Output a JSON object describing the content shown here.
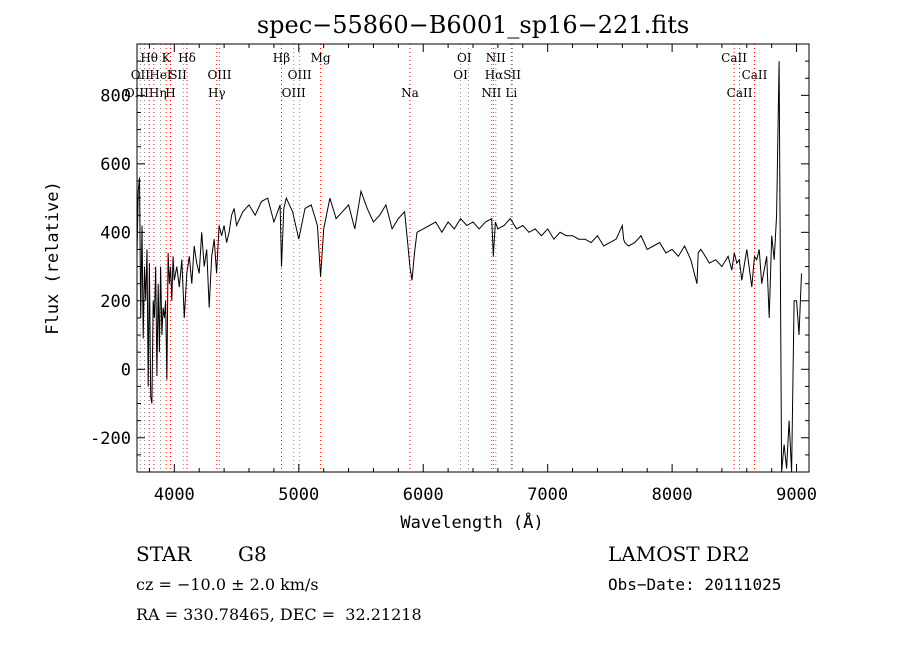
{
  "chart_data": {
    "type": "line",
    "title": "spec−55860−B6001_sp16−221.fits",
    "xlabel": "Wavelength (Å)",
    "ylabel": "Flux (relative)",
    "xlim": [
      3700,
      9100
    ],
    "ylim": [
      -300,
      950
    ],
    "x_ticks": [
      4000,
      5000,
      6000,
      7000,
      8000,
      9000
    ],
    "y_ticks": [
      -200,
      0,
      200,
      400,
      600,
      800
    ],
    "grid": false,
    "series": [
      {
        "x": [
          3700,
          3710,
          3720,
          3730,
          3740,
          3750,
          3760,
          3770,
          3780,
          3790,
          3800,
          3810,
          3820,
          3830,
          3840,
          3850,
          3860,
          3870,
          3880,
          3890,
          3900,
          3910,
          3920,
          3930,
          3940,
          3950,
          3960,
          3970,
          3980,
          3990,
          4000,
          4020,
          4040,
          4060,
          4080,
          4100,
          4120,
          4140,
          4160,
          4180,
          4200,
          4220,
          4240,
          4260,
          4280,
          4300,
          4320,
          4340,
          4360,
          4380,
          4400,
          4420,
          4440,
          4460,
          4480,
          4500,
          4550,
          4600,
          4650,
          4700,
          4750,
          4800,
          4850,
          4861,
          4880,
          4900,
          4950,
          5000,
          5050,
          5100,
          5150,
          5175,
          5200,
          5250,
          5300,
          5350,
          5400,
          5450,
          5500,
          5550,
          5600,
          5650,
          5700,
          5750,
          5800,
          5850,
          5870,
          5893,
          5910,
          5930,
          5950,
          6000,
          6050,
          6100,
          6150,
          6200,
          6250,
          6300,
          6350,
          6400,
          6450,
          6500,
          6550,
          6563,
          6580,
          6600,
          6650,
          6700,
          6750,
          6800,
          6850,
          6900,
          6950,
          7000,
          7050,
          7100,
          7150,
          7200,
          7250,
          7300,
          7350,
          7400,
          7450,
          7500,
          7550,
          7600,
          7610,
          7620,
          7650,
          7700,
          7750,
          7800,
          7850,
          7900,
          7950,
          8000,
          8050,
          8100,
          8150,
          8200,
          8210,
          8230,
          8250,
          8300,
          8350,
          8400,
          8450,
          8480,
          8500,
          8520,
          8540,
          8560,
          8600,
          8640,
          8662,
          8680,
          8700,
          8720,
          8740,
          8760,
          8780,
          8800,
          8820,
          8840,
          8860,
          8880,
          8900,
          8920,
          8940,
          8960,
          8980,
          9000,
          9020,
          9040
        ],
        "y": [
          330,
          520,
          560,
          150,
          420,
          90,
          300,
          200,
          350,
          -50,
          310,
          -80,
          -100,
          200,
          150,
          300,
          -20,
          250,
          50,
          300,
          100,
          180,
          150,
          200,
          -30,
          340,
          250,
          300,
          200,
          330,
          260,
          300,
          240,
          320,
          150,
          280,
          330,
          250,
          360,
          310,
          280,
          400,
          300,
          350,
          180,
          330,
          380,
          280,
          420,
          390,
          420,
          370,
          400,
          450,
          470,
          420,
          460,
          480,
          450,
          490,
          500,
          430,
          480,
          300,
          470,
          500,
          460,
          380,
          470,
          480,
          420,
          270,
          410,
          500,
          440,
          460,
          480,
          410,
          520,
          470,
          430,
          450,
          480,
          410,
          440,
          460,
          390,
          300,
          260,
          340,
          400,
          410,
          420,
          430,
          400,
          430,
          410,
          440,
          420,
          430,
          410,
          430,
          440,
          330,
          430,
          410,
          420,
          440,
          410,
          420,
          400,
          410,
          390,
          410,
          380,
          400,
          390,
          390,
          380,
          380,
          370,
          390,
          360,
          370,
          380,
          420,
          380,
          370,
          360,
          370,
          390,
          350,
          360,
          370,
          340,
          350,
          330,
          360,
          320,
          250,
          340,
          350,
          340,
          310,
          320,
          300,
          330,
          290,
          340,
          310,
          320,
          260,
          350,
          240,
          330,
          320,
          350,
          250,
          290,
          330,
          150,
          390,
          320,
          450,
          900,
          -300,
          -220,
          -290,
          -150,
          -300,
          200,
          200,
          100,
          280
        ]
      }
    ],
    "lines_dotted_red": [
      {
        "label": "Hθ",
        "x": 3798
      },
      {
        "label": "Hη",
        "x": 3835
      },
      {
        "label": "K",
        "x": 3934
      },
      {
        "label": "H",
        "x": 3969
      },
      {
        "label": "Hδ",
        "x": 4102
      },
      {
        "label": "Hγ",
        "x": 4341
      },
      {
        "label": "Hβ",
        "x": 4861
      },
      {
        "label": "Mg",
        "x": 5175
      },
      {
        "label": "Na",
        "x": 5893
      },
      {
        "label": "Hα",
        "x": 6563
      },
      {
        "label": "Li",
        "x": 6708
      },
      {
        "label": "CaII",
        "x": 8498
      },
      {
        "label": "CaII",
        "x": 8542
      },
      {
        "label": "CaII",
        "x": 8662
      }
    ],
    "lines_dotted_gray": [
      {
        "label": "OII",
        "x": 3727
      },
      {
        "label": "OIII",
        "x": 3760
      },
      {
        "label": "HeI",
        "x": 3889
      },
      {
        "label": "SII",
        "x": 4072
      },
      {
        "label": "OIII",
        "x": 4363
      },
      {
        "label": "OIII",
        "x": 4959
      },
      {
        "label": "OIII",
        "x": 5007
      },
      {
        "label": "OI",
        "x": 6300
      },
      {
        "label": "OI",
        "x": 6364
      },
      {
        "label": "NII",
        "x": 6548
      },
      {
        "label": "NII",
        "x": 6583
      },
      {
        "label": "SII",
        "x": 6717
      }
    ],
    "line_labels_row1": [
      {
        "text": "Hθ",
        "x": 3798
      },
      {
        "text": "K",
        "x": 3934
      },
      {
        "text": "Hδ",
        "x": 4102
      },
      {
        "text": "Hβ",
        "x": 4861
      },
      {
        "text": "Mg",
        "x": 5175
      },
      {
        "text": "OI",
        "x": 6330
      },
      {
        "text": "NII",
        "x": 6583
      },
      {
        "text": "CaII",
        "x": 8498
      }
    ],
    "line_labels_row2": [
      {
        "text": "OII",
        "x": 3727
      },
      {
        "text": "HeI",
        "x": 3889
      },
      {
        "text": "SII",
        "x": 4030
      },
      {
        "text": "OIII",
        "x": 4363
      },
      {
        "text": "OIII",
        "x": 5007
      },
      {
        "text": "OI",
        "x": 6300
      },
      {
        "text": "HαSII",
        "x": 6640
      },
      {
        "text": "CaII",
        "x": 8662
      }
    ],
    "line_labels_row3": [
      {
        "text": "OIIIHη",
        "x": 3770
      },
      {
        "text": "H",
        "x": 3969
      },
      {
        "text": "Hγ",
        "x": 4341
      },
      {
        "text": "OIII",
        "x": 4959
      },
      {
        "text": "Na",
        "x": 5893
      },
      {
        "text": "NII",
        "x": 6548
      },
      {
        "text": "Li",
        "x": 6708
      },
      {
        "text": "CaII",
        "x": 8542
      }
    ]
  },
  "info": {
    "class": "STAR",
    "subclass": "G8",
    "cz": "cz = −10.0 ± 2.0 km/s",
    "radec": "RA = 330.78465, DEC =  32.21218",
    "survey": "LAMOST DR2",
    "obs_date": "Obs−Date: 20111025"
  },
  "colors": {
    "spectrum": "#000000",
    "balmer_lines": "#ff0000",
    "other_lines": "#888888",
    "axes": "#000000"
  }
}
